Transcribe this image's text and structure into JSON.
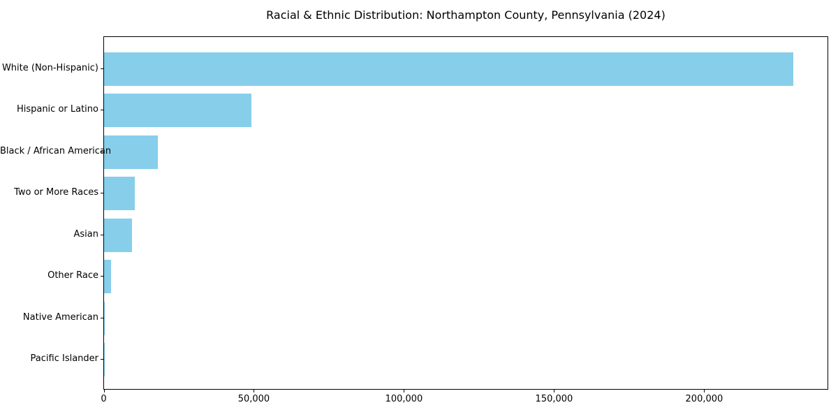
{
  "chart_data": {
    "type": "bar",
    "orientation": "horizontal",
    "title": "Racial & Ethnic Distribution: Northampton County, Pennsylvania (2024)",
    "categories": [
      "White (Non-Hispanic)",
      "Hispanic or Latino",
      "Black / African American",
      "Two or More Races",
      "Asian",
      "Other Race",
      "Native American",
      "Pacific Islander"
    ],
    "values": [
      229500,
      49000,
      17800,
      10300,
      9400,
      2300,
      100,
      50
    ],
    "xlabel": "",
    "ylabel": "",
    "xlim": [
      0,
      241300
    ],
    "xticks": [
      0,
      50000,
      100000,
      150000,
      200000
    ],
    "xtick_labels": [
      "0",
      "50,000",
      "100,000",
      "150,000",
      "200,000"
    ],
    "grid": false,
    "legend": false,
    "bar_color": "#87CEEB",
    "background_color": "#ffffff",
    "text_color": "#000000",
    "axis_color": "#000000"
  }
}
